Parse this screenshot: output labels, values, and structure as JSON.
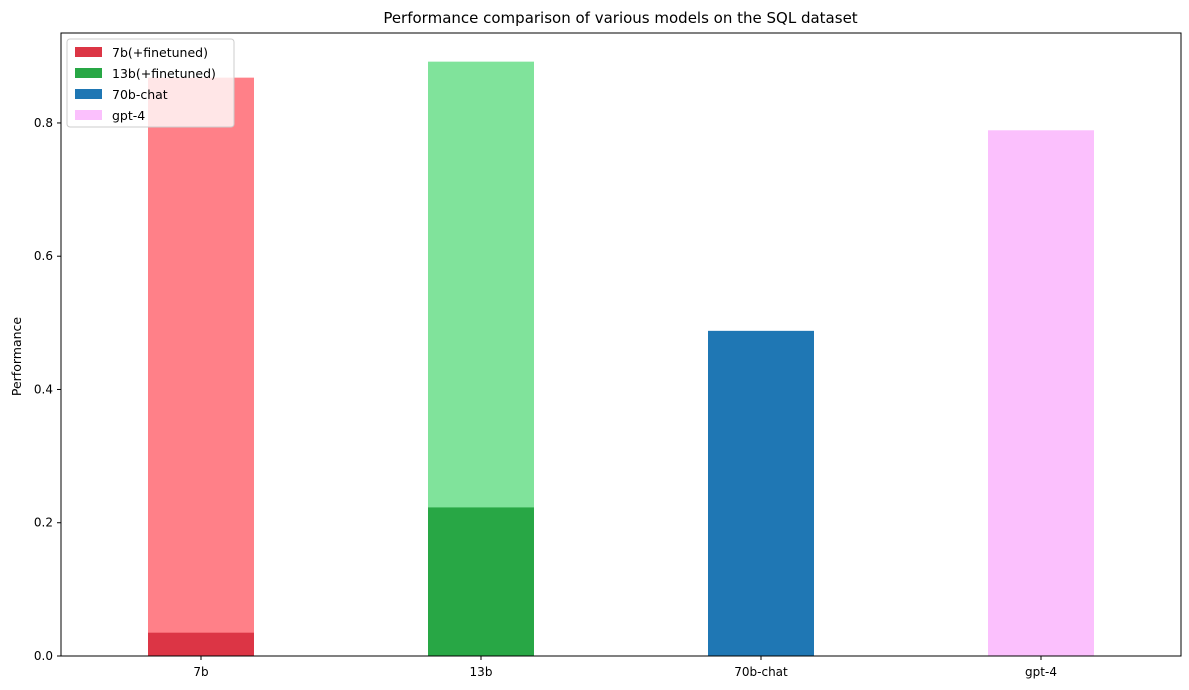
{
  "chart_data": {
    "type": "bar",
    "title": "Performance comparison of various models on the SQL dataset",
    "xlabel": "",
    "ylabel": "Performance",
    "ylim": [
      0,
      0.935
    ],
    "yticks": [
      0.0,
      0.2,
      0.4,
      0.6,
      0.8
    ],
    "ytick_labels": [
      "0.0",
      "0.2",
      "0.4",
      "0.6",
      "0.8"
    ],
    "grid": false,
    "legend_position": "top-left",
    "categories": [
      "7b",
      "13b",
      "70b-chat",
      "gpt-4"
    ],
    "bars": [
      {
        "category": "7b",
        "series": "7b(+finetuned)",
        "base": 0.035,
        "finetuned": 0.868,
        "base_color": "#dc3545",
        "finetuned_color": "#ff8088"
      },
      {
        "category": "13b",
        "series": "13b(+finetuned)",
        "base": 0.223,
        "finetuned": 0.892,
        "base_color": "#28a745",
        "finetuned_color": "#80e39b"
      },
      {
        "category": "70b-chat",
        "series": "70b-chat",
        "base": 0.488,
        "finetuned": null,
        "base_color": "#1f77b4",
        "finetuned_color": null
      },
      {
        "category": "gpt-4",
        "series": "gpt-4",
        "base": 0.789,
        "finetuned": null,
        "base_color": "#fbc0fd",
        "finetuned_color": null
      }
    ],
    "legend": [
      {
        "label": "7b(+finetuned)",
        "color": "#dc3545"
      },
      {
        "label": "13b(+finetuned)",
        "color": "#28a745"
      },
      {
        "label": "70b-chat",
        "color": "#1f77b4"
      },
      {
        "label": "gpt-4",
        "color": "#fbc0fd"
      }
    ]
  }
}
